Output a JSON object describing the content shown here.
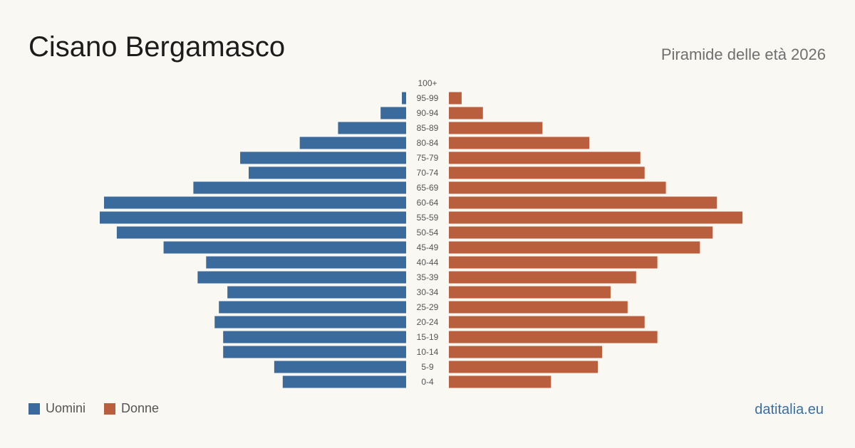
{
  "header": {
    "title": "Cisano Bergamasco",
    "subtitle": "Piramide delle età 2026"
  },
  "footer": {
    "brand": "datitalia.eu"
  },
  "colors": {
    "men": "#3b6a9c",
    "women": "#b95f3e"
  },
  "chart_data": {
    "type": "bar",
    "orientation": "horizontal-pyramid",
    "categories": [
      "100+",
      "95-99",
      "90-94",
      "85-89",
      "80-84",
      "75-79",
      "70-74",
      "65-69",
      "60-64",
      "55-59",
      "50-54",
      "45-49",
      "40-44",
      "35-39",
      "30-34",
      "25-29",
      "20-24",
      "15-19",
      "10-14",
      "5-9",
      "0-4"
    ],
    "series": [
      {
        "name": "Uomini",
        "values": [
          0,
          1,
          6,
          16,
          25,
          39,
          37,
          50,
          71,
          72,
          68,
          57,
          47,
          49,
          42,
          44,
          45,
          43,
          43,
          31,
          29
        ]
      },
      {
        "name": "Donne",
        "values": [
          0,
          3,
          8,
          22,
          33,
          45,
          46,
          51,
          63,
          69,
          62,
          59,
          49,
          44,
          38,
          42,
          46,
          49,
          36,
          35,
          24
        ]
      }
    ],
    "xlim": [
      0,
      72
    ],
    "grid": false,
    "legend_position": "bottom-left"
  }
}
